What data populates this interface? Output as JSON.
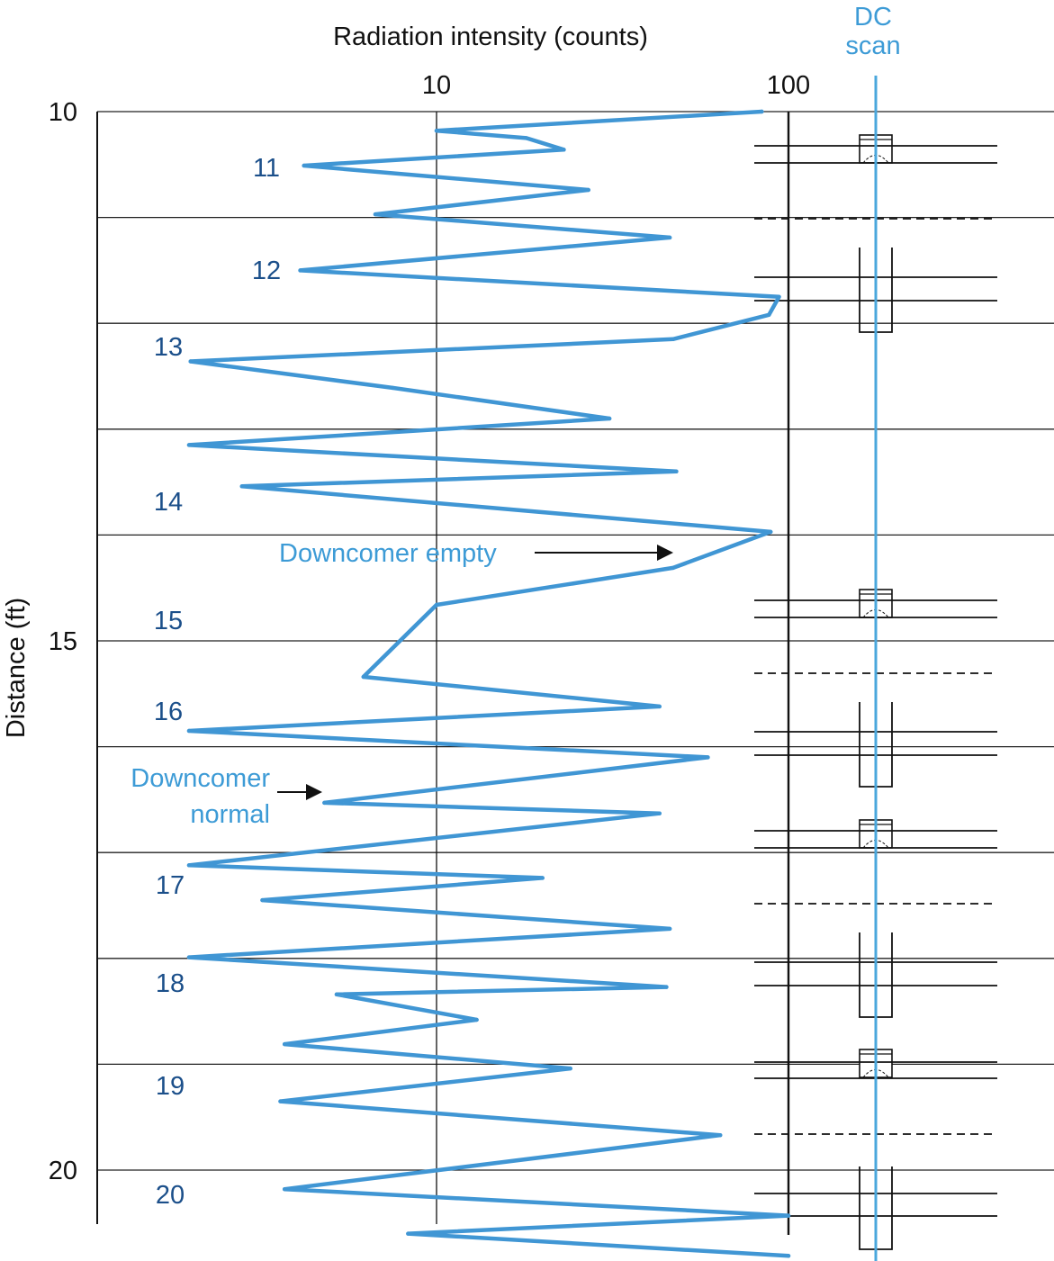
{
  "chart_data": {
    "type": "line",
    "title": "",
    "xlabel": "Radiation intensity (counts)",
    "ylabel": "Distance (ft)",
    "x_scale": "log",
    "x_ticks": [
      10,
      100
    ],
    "y_ticks": [
      10,
      15,
      20
    ],
    "ylim": [
      10,
      21.2
    ],
    "grid": true,
    "scan_label": "DC\nscan",
    "tray_labels": [
      "11",
      "12",
      "13",
      "14",
      "15",
      "16",
      "17",
      "18",
      "19",
      "20"
    ],
    "annotations": [
      {
        "text": "Downcomer empty",
        "x": 50,
        "y": 14.2
      },
      {
        "text": "Downcomer\nnormal",
        "x": 5,
        "y": 16.45
      }
    ],
    "series": [
      {
        "values": [
          [
            84,
            10.0
          ],
          [
            10,
            10.18
          ],
          [
            18,
            10.25
          ],
          [
            23,
            10.36
          ],
          [
            4.2,
            10.51
          ],
          [
            27,
            10.74
          ],
          [
            6.7,
            10.97
          ],
          [
            46,
            11.19
          ],
          [
            4.1,
            11.5
          ],
          [
            94,
            11.75
          ],
          [
            88,
            11.92
          ],
          [
            47,
            12.15
          ],
          [
            2,
            12.36
          ],
          [
            7.5,
            12.61
          ],
          [
            31,
            12.9
          ],
          [
            1.98,
            13.15
          ],
          [
            48,
            13.4
          ],
          [
            2.8,
            13.54
          ],
          [
            89,
            13.97
          ],
          [
            47,
            14.31
          ],
          [
            10,
            14.66
          ],
          [
            6.2,
            15.34
          ],
          [
            43,
            15.62
          ],
          [
            1.98,
            15.85
          ],
          [
            59,
            16.1
          ],
          [
            4.8,
            16.53
          ],
          [
            43,
            16.63
          ],
          [
            1.98,
            17.12
          ],
          [
            20,
            17.24
          ],
          [
            3.2,
            17.45
          ],
          [
            46,
            17.72
          ],
          [
            1.98,
            17.99
          ],
          [
            45,
            18.27
          ],
          [
            5.2,
            18.34
          ],
          [
            13,
            18.58
          ],
          [
            3.7,
            18.81
          ],
          [
            24,
            19.04
          ],
          [
            3.6,
            19.35
          ],
          [
            64,
            19.67
          ],
          [
            3.7,
            20.18
          ],
          [
            100,
            20.43
          ],
          [
            8.3,
            20.6
          ],
          [
            100,
            20.81
          ]
        ]
      }
    ]
  },
  "colors": {
    "series": "#4096d4",
    "scan_line": "#4aa7dc",
    "tray_label": "#1b4f8a",
    "annotation": "#3d9bd6",
    "axis": "#111111"
  }
}
